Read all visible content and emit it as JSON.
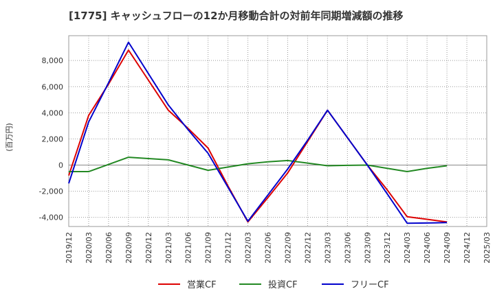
{
  "chart_data": {
    "type": "line",
    "title": "[1775]  キャッシュフローの12か月移動合計の対前年同期増減額の推移",
    "ylabel": "(百万円)",
    "xlabel": "",
    "ylim": [
      -4700,
      9900
    ],
    "yticks": [
      -4000,
      -2000,
      0,
      2000,
      4000,
      6000,
      8000
    ],
    "ytick_labels": [
      "-4,000",
      "-2,000",
      "0",
      "2,000",
      "4,000",
      "6,000",
      "8,000"
    ],
    "categories": [
      "2019/12",
      "2020/03",
      "2020/06",
      "2020/09",
      "2020/12",
      "2021/03",
      "2021/06",
      "2021/09",
      "2021/12",
      "2022/03",
      "2022/06",
      "2022/09",
      "2022/12",
      "2023/03",
      "2023/06",
      "2023/09",
      "2023/12",
      "2024/03",
      "2024/06",
      "2024/09",
      "2024/12",
      "2025/03"
    ],
    "grid": true,
    "legend_position": "bottom",
    "series": [
      {
        "name": "営業CF",
        "color": "#dd0000",
        "values": [
          -800,
          3800,
          6200,
          8800,
          6500,
          4200,
          2800,
          1300,
          -1600,
          -4350,
          -2500,
          -600,
          1800,
          4200,
          2100,
          0,
          -1900,
          -3950,
          -4150,
          -4350,
          null,
          null
        ]
      },
      {
        "name": "投資CF",
        "color": "#228822",
        "values": [
          -500,
          -500,
          50,
          600,
          500,
          400,
          0,
          -400,
          -150,
          100,
          250,
          350,
          150,
          -50,
          -20,
          0,
          -250,
          -500,
          -250,
          -50,
          null,
          null
        ]
      },
      {
        "name": "フリーCF",
        "color": "#0000cc",
        "values": [
          -1400,
          3300,
          6300,
          9400,
          7000,
          4600,
          2700,
          900,
          -1700,
          -4300,
          -2300,
          -300,
          1900,
          4200,
          2100,
          0,
          -2200,
          -4450,
          -4430,
          -4400,
          null,
          null
        ]
      }
    ]
  }
}
